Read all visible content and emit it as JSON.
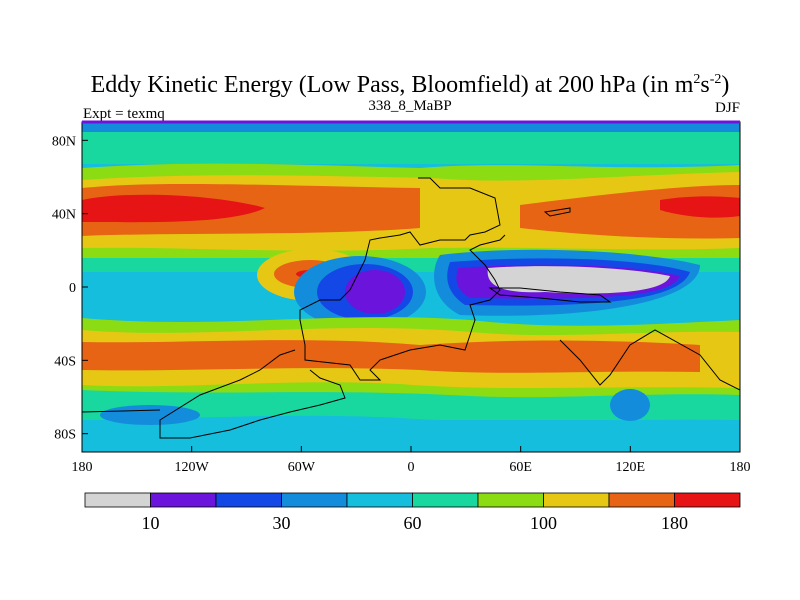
{
  "chart_data": {
    "type": "heatmap",
    "title": "Eddy Kinetic Energy (Low Pass, Bloomfield) at 200 hPa (in m",
    "title_units": {
      "sup1": "2",
      "mid": "s",
      "sup2": "-2",
      "tail": ")"
    },
    "subtitle_left": "Expt = texmq",
    "subtitle_center": "338_8_MaBP",
    "subtitle_right": "DJF",
    "x_ticks": [
      "180",
      "120W",
      "60W",
      "0",
      "60E",
      "120E",
      "180"
    ],
    "y_ticks": [
      "80N",
      "40N",
      "0",
      "40S",
      "80S"
    ],
    "xlim": [
      -180,
      180
    ],
    "ylim": [
      -90,
      90
    ],
    "colorbar": {
      "levels": [
        10,
        20,
        30,
        45,
        60,
        80,
        100,
        140,
        180
      ],
      "labels": [
        "10",
        "30",
        "60",
        "100",
        "180"
      ],
      "colors": [
        "#d4d4d4",
        "#6a14dc",
        "#1448e6",
        "#148cdc",
        "#14bedc",
        "#18d8a0",
        "#8cdc14",
        "#e6c814",
        "#e66414",
        "#e61414"
      ]
    },
    "grid": false
  }
}
